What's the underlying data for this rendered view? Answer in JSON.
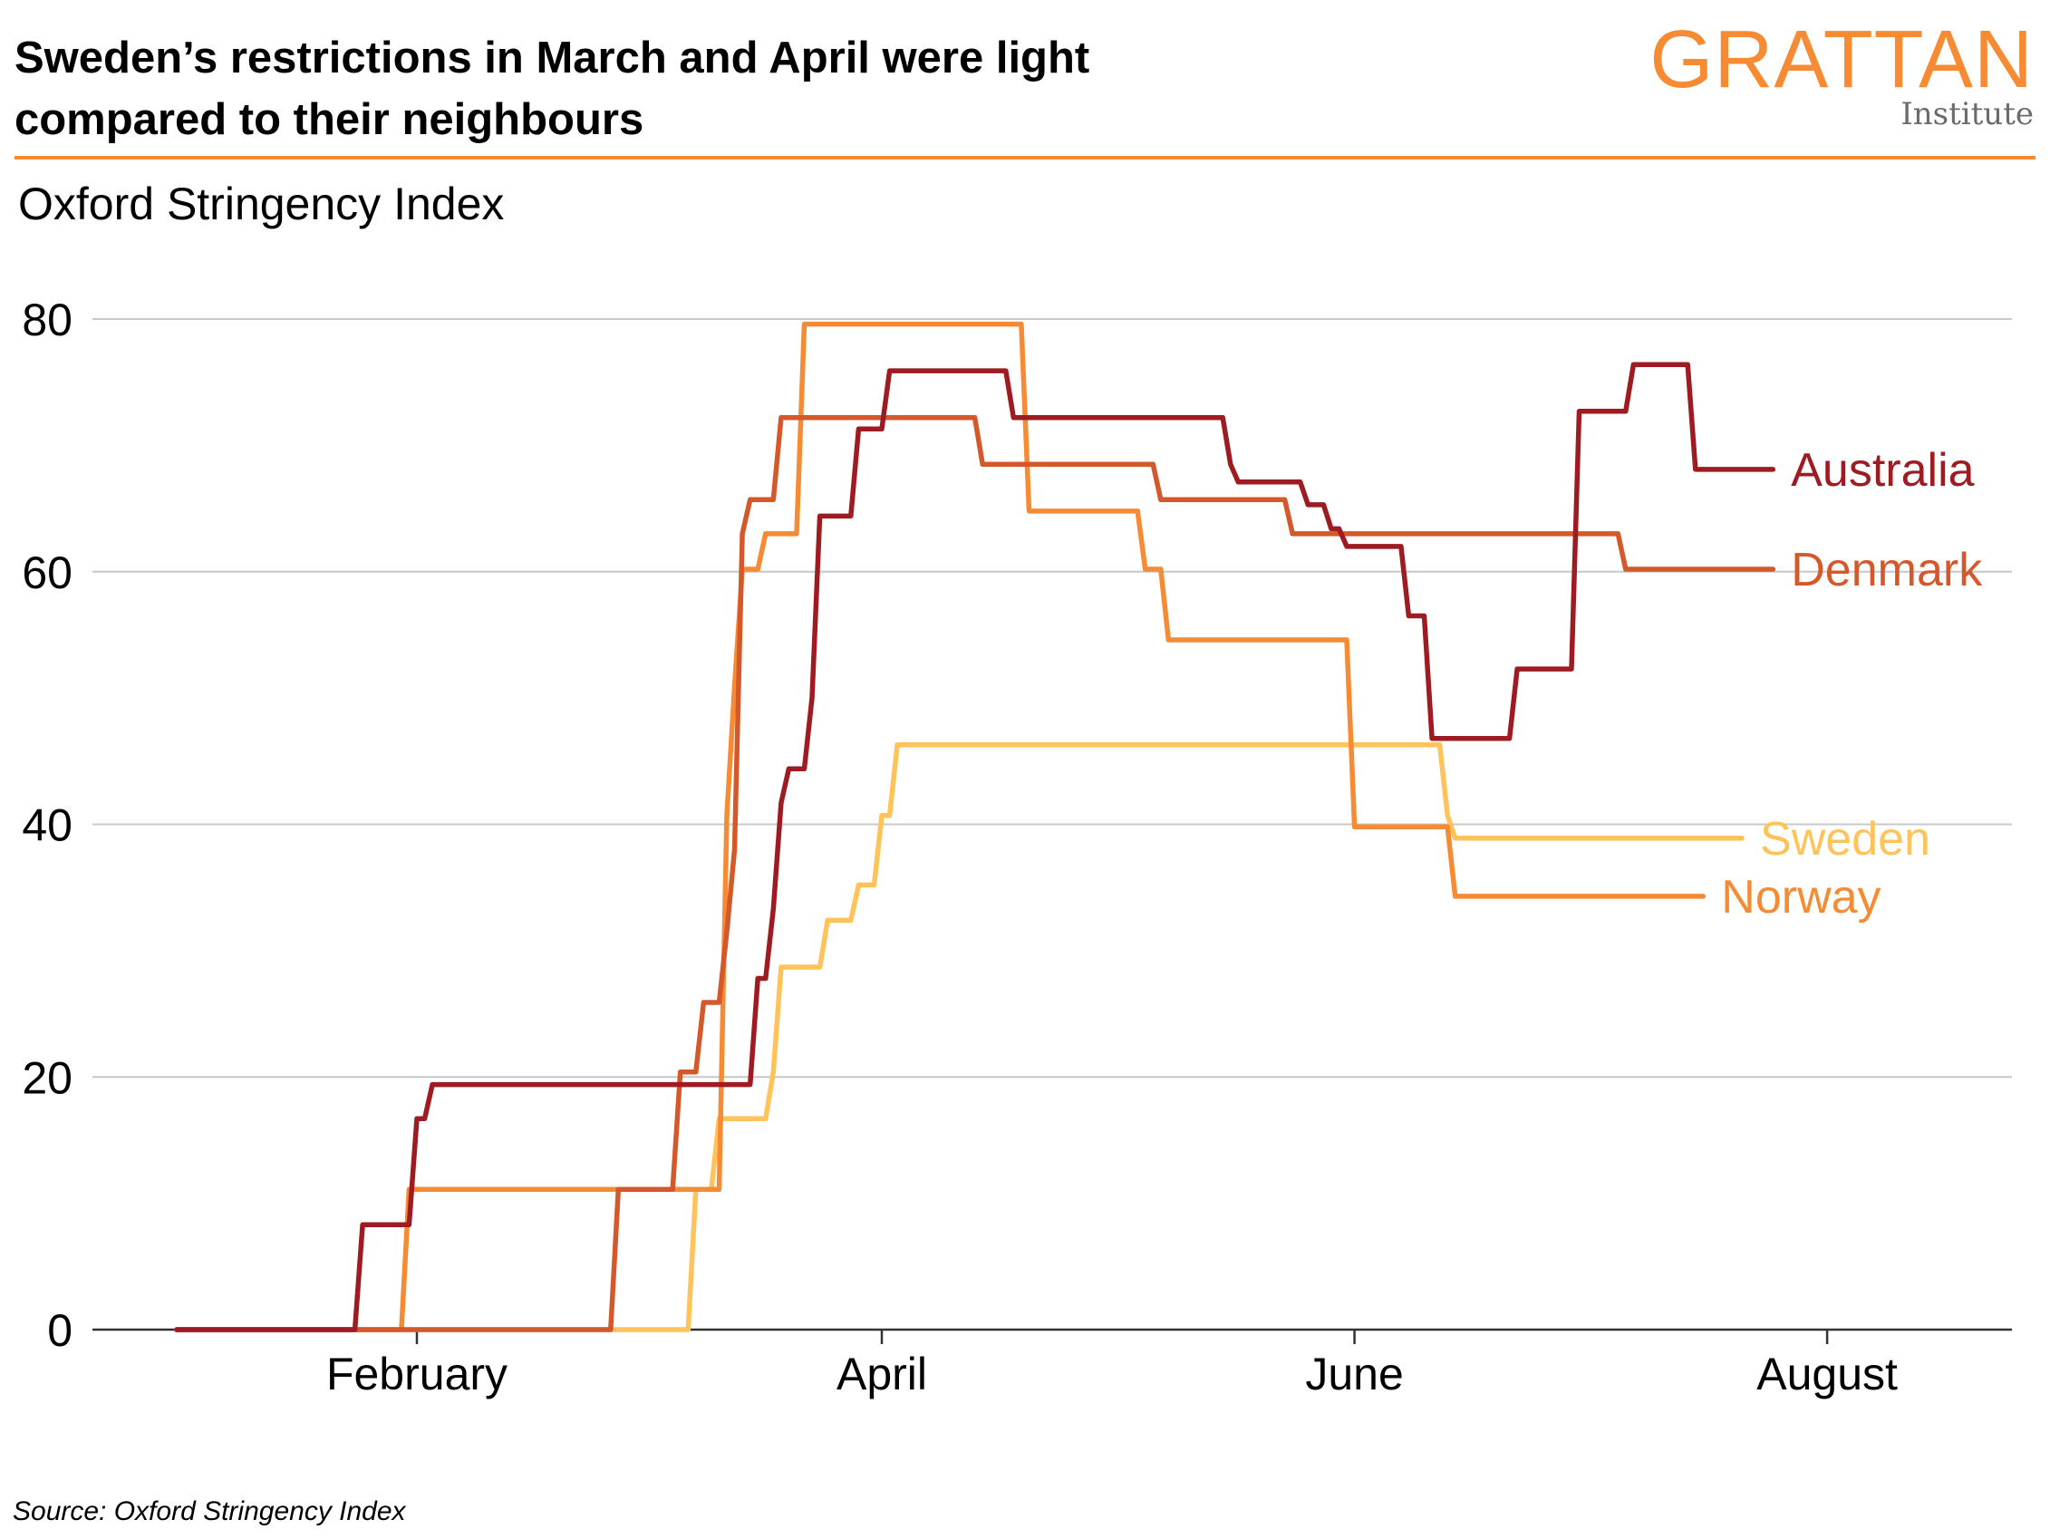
{
  "header": {
    "title_line1": "Sweden’s restrictions in March and April were light",
    "title_line2": "compared to their neighbours",
    "logo_main": "GRATTAN",
    "logo_sub": "Institute"
  },
  "footer": {
    "source": "Source: Oxford Stringency Index"
  },
  "colors": {
    "accent": "#F68B33",
    "australia": "#9E1B22",
    "denmark": "#D4582A",
    "norway": "#F68B33",
    "sweden": "#FFC35A",
    "grid": "#c8c8c8"
  },
  "chart_data": {
    "type": "line",
    "title": "Sweden’s restrictions in March and April were light compared to their neighbours",
    "ylabel": "Oxford Stringency Index",
    "xlabel": "",
    "ylim": [
      0,
      80
    ],
    "y_ticks": [
      0,
      20,
      40,
      60,
      80
    ],
    "x_ticks": [
      {
        "label": "February",
        "x": "2020-02-01"
      },
      {
        "label": "April",
        "x": "2020-04-01"
      },
      {
        "label": "June",
        "x": "2020-06-01"
      },
      {
        "label": "August",
        "x": "2020-08-01"
      }
    ],
    "xlim": [
      "2020-01-01",
      "2020-08-31"
    ],
    "grid": true,
    "legend": "direct labels at line ends",
    "series": [
      {
        "name": "Australia",
        "points": [
          [
            "2020-01-01",
            0
          ],
          [
            "2020-01-24",
            0
          ],
          [
            "2020-01-25",
            8.3
          ],
          [
            "2020-01-31",
            8.3
          ],
          [
            "2020-02-01",
            16.7
          ],
          [
            "2020-02-02",
            16.7
          ],
          [
            "2020-02-03",
            19.4
          ],
          [
            "2020-03-14",
            19.4
          ],
          [
            "2020-03-15",
            19.4
          ],
          [
            "2020-03-16",
            27.8
          ],
          [
            "2020-03-17",
            27.8
          ],
          [
            "2020-03-18",
            33.3
          ],
          [
            "2020-03-19",
            41.7
          ],
          [
            "2020-03-20",
            44.4
          ],
          [
            "2020-03-22",
            44.4
          ],
          [
            "2020-03-23",
            50
          ],
          [
            "2020-03-24",
            64.4
          ],
          [
            "2020-03-28",
            64.4
          ],
          [
            "2020-03-29",
            71.3
          ],
          [
            "2020-04-01",
            71.3
          ],
          [
            "2020-04-02",
            75.9
          ],
          [
            "2020-04-17",
            75.9
          ],
          [
            "2020-04-18",
            72.2
          ],
          [
            "2020-05-15",
            72.2
          ],
          [
            "2020-05-16",
            68.5
          ],
          [
            "2020-05-17",
            67.1
          ],
          [
            "2020-05-25",
            67.1
          ],
          [
            "2020-05-26",
            65.3
          ],
          [
            "2020-05-28",
            65.3
          ],
          [
            "2020-05-29",
            63.4
          ],
          [
            "2020-05-30",
            63.4
          ],
          [
            "2020-05-31",
            62
          ],
          [
            "2020-06-07",
            62
          ],
          [
            "2020-06-08",
            56.5
          ],
          [
            "2020-06-10",
            56.5
          ],
          [
            "2020-06-11",
            46.8
          ],
          [
            "2020-06-21",
            46.8
          ],
          [
            "2020-06-22",
            52.3
          ],
          [
            "2020-06-29",
            52.3
          ],
          [
            "2020-06-30",
            72.7
          ],
          [
            "2020-07-06",
            72.7
          ],
          [
            "2020-07-07",
            76.4
          ],
          [
            "2020-07-14",
            76.4
          ],
          [
            "2020-07-15",
            68.1
          ],
          [
            "2020-07-25",
            68.1
          ]
        ]
      },
      {
        "name": "Denmark",
        "points": [
          [
            "2020-01-01",
            0
          ],
          [
            "2020-02-26",
            0
          ],
          [
            "2020-02-27",
            11.1
          ],
          [
            "2020-03-05",
            11.1
          ],
          [
            "2020-03-06",
            20.4
          ],
          [
            "2020-03-08",
            20.4
          ],
          [
            "2020-03-09",
            25.9
          ],
          [
            "2020-03-11",
            25.9
          ],
          [
            "2020-03-12",
            31.5
          ],
          [
            "2020-03-13",
            38
          ],
          [
            "2020-03-14",
            63
          ],
          [
            "2020-03-15",
            65.7
          ],
          [
            "2020-03-18",
            65.7
          ],
          [
            "2020-03-19",
            72.2
          ],
          [
            "2020-04-13",
            72.2
          ],
          [
            "2020-04-14",
            68.5
          ],
          [
            "2020-05-06",
            68.5
          ],
          [
            "2020-05-07",
            65.7
          ],
          [
            "2020-05-23",
            65.7
          ],
          [
            "2020-05-24",
            63
          ],
          [
            "2020-07-05",
            63
          ],
          [
            "2020-07-06",
            60.2
          ],
          [
            "2020-07-25",
            60.2
          ]
        ]
      },
      {
        "name": "Norway",
        "points": [
          [
            "2020-01-01",
            0
          ],
          [
            "2020-01-30",
            0
          ],
          [
            "2020-01-31",
            11.1
          ],
          [
            "2020-03-11",
            11.1
          ],
          [
            "2020-03-12",
            40.7
          ],
          [
            "2020-03-13",
            50.9
          ],
          [
            "2020-03-14",
            60.2
          ],
          [
            "2020-03-16",
            60.2
          ],
          [
            "2020-03-17",
            63
          ],
          [
            "2020-03-21",
            63
          ],
          [
            "2020-03-22",
            79.6
          ],
          [
            "2020-04-19",
            79.6
          ],
          [
            "2020-04-20",
            64.8
          ],
          [
            "2020-05-04",
            64.8
          ],
          [
            "2020-05-05",
            60.2
          ],
          [
            "2020-05-07",
            60.2
          ],
          [
            "2020-05-08",
            54.6
          ],
          [
            "2020-05-31",
            54.6
          ],
          [
            "2020-06-01",
            39.8
          ],
          [
            "2020-06-13",
            39.8
          ],
          [
            "2020-06-14",
            34.3
          ],
          [
            "2020-07-16",
            34.3
          ]
        ]
      },
      {
        "name": "Sweden",
        "points": [
          [
            "2020-01-01",
            0
          ],
          [
            "2020-03-07",
            0
          ],
          [
            "2020-03-08",
            11.1
          ],
          [
            "2020-03-10",
            11.1
          ],
          [
            "2020-03-11",
            16.7
          ],
          [
            "2020-03-17",
            16.7
          ],
          [
            "2020-03-18",
            20.4
          ],
          [
            "2020-03-19",
            28.7
          ],
          [
            "2020-03-24",
            28.7
          ],
          [
            "2020-03-25",
            32.4
          ],
          [
            "2020-03-28",
            32.4
          ],
          [
            "2020-03-29",
            35.2
          ],
          [
            "2020-03-31",
            35.2
          ],
          [
            "2020-04-01",
            40.7
          ],
          [
            "2020-04-02",
            40.7
          ],
          [
            "2020-04-03",
            46.3
          ],
          [
            "2020-06-12",
            46.3
          ],
          [
            "2020-06-13",
            40.7
          ],
          [
            "2020-06-14",
            38.9
          ],
          [
            "2020-07-21",
            38.9
          ]
        ]
      }
    ]
  }
}
